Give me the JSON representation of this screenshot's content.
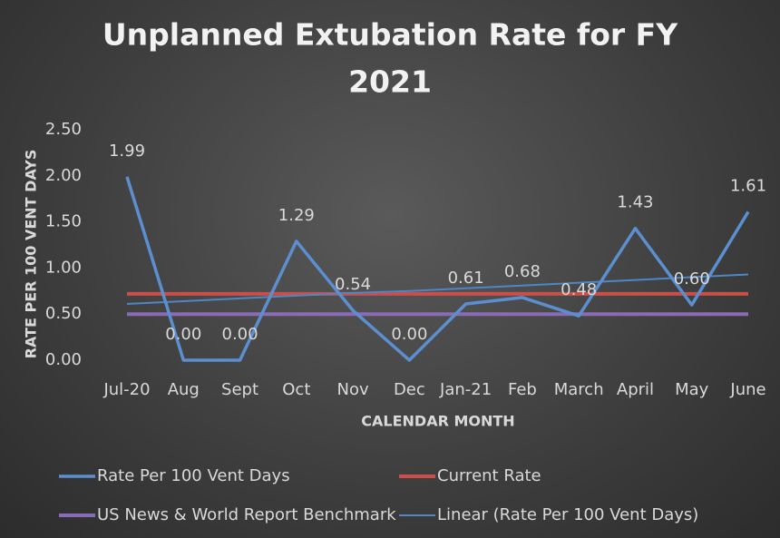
{
  "chart_data": {
    "type": "line",
    "title": "Unplanned Extubation Rate for FY 2021",
    "ylabel": "RATE PER 100 VENT DAYS",
    "xlabel": "CALENDAR MONTH",
    "categories": [
      "Jul-20",
      "Aug",
      "Sept",
      "Oct",
      "Nov",
      "Dec",
      "Jan-21",
      "Feb",
      "March",
      "April",
      "May",
      "June"
    ],
    "series": [
      {
        "name": "Rate Per 100 Vent Days",
        "color": "#5b8fd0",
        "width": 3.5,
        "values": [
          1.99,
          0,
          0,
          1.29,
          0.54,
          0,
          0.61,
          0.68,
          0.48,
          1.43,
          0.6,
          1.61
        ],
        "value_labels": [
          "1.99",
          "0.00",
          "0.00",
          "1.29",
          "0.54",
          "0.00",
          "0.61",
          "0.68",
          "0.48",
          "1.43",
          "0.60",
          "1.61"
        ]
      },
      {
        "name": "Current Rate",
        "color": "#c84f4a",
        "width": 4,
        "values": [
          0.72,
          0.72,
          0.72,
          0.72,
          0.72,
          0.72,
          0.72,
          0.72,
          0.72,
          0.72,
          0.72,
          0.72
        ]
      },
      {
        "name": "US News & World Report Benchmark",
        "color": "#8a6bb5",
        "width": 4,
        "values": [
          0.5,
          0.5,
          0.5,
          0.5,
          0.5,
          0.5,
          0.5,
          0.5,
          0.5,
          0.5,
          0.5,
          0.5
        ]
      },
      {
        "name": "Linear (Rate Per 100 Vent Days)",
        "color": "#4f86c6",
        "width": 2,
        "values": [
          0.61,
          0.64,
          0.67,
          0.7,
          0.73,
          0.75,
          0.78,
          0.81,
          0.84,
          0.87,
          0.9,
          0.93
        ]
      }
    ],
    "ylim": [
      0,
      2.5
    ],
    "yticks": [
      {
        "value": 0,
        "label": "0.00"
      },
      {
        "value": 0.5,
        "label": "0.50"
      },
      {
        "value": 1,
        "label": "1.00"
      },
      {
        "value": 1.5,
        "label": "1.50"
      },
      {
        "value": 2,
        "label": "2.00"
      },
      {
        "value": 2.5,
        "label": "2.50"
      }
    ],
    "grid": false
  }
}
